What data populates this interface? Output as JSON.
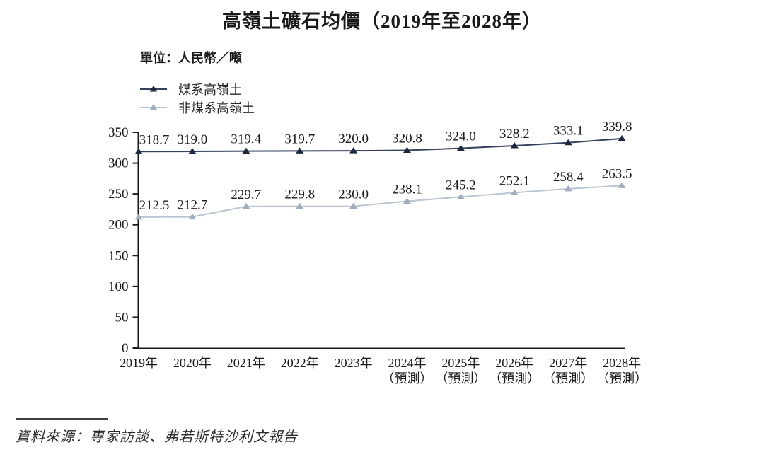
{
  "page": {
    "unit_label": "單位：人民幣／噸",
    "source": "資料來源：專家訪談、弗若斯特沙利文報告"
  },
  "chart_data": {
    "type": "line",
    "title": "高嶺土礦石均價（2019年至2028年）",
    "unit": "人民幣／噸",
    "categories": [
      "2019年",
      "2020年",
      "2021年",
      "2022年",
      "2023年",
      "2024年",
      "2025年",
      "2026年",
      "2027年",
      "2028年"
    ],
    "category_sublabels": [
      "",
      "",
      "",
      "",
      "",
      "（預測）",
      "（預測）",
      "（預測）",
      "（預測）",
      "（預測）"
    ],
    "series": [
      {
        "name": "煤系高嶺土",
        "color": "#35415c",
        "marker_color": "#1c2840",
        "values": [
          318.7,
          319.0,
          319.4,
          319.7,
          320.0,
          320.8,
          324.0,
          328.2,
          333.1,
          339.8
        ]
      },
      {
        "name": "非煤系高嶺土",
        "color": "#b9c4d1",
        "marker_color": "#9fadbf",
        "values": [
          212.5,
          212.7,
          229.7,
          229.8,
          230.0,
          238.1,
          245.2,
          252.1,
          258.4,
          263.5
        ]
      }
    ],
    "ylim": [
      0,
      350
    ],
    "yticks": [
      0,
      50,
      100,
      150,
      200,
      250,
      300,
      350
    ],
    "ylabel": "",
    "xlabel": "",
    "grid": false,
    "legend_position": "top-left",
    "marker": "triangle-up",
    "data_labels_decimals": 1,
    "source": "資料來源：專家訪談、弗若斯特沙利文報告"
  }
}
